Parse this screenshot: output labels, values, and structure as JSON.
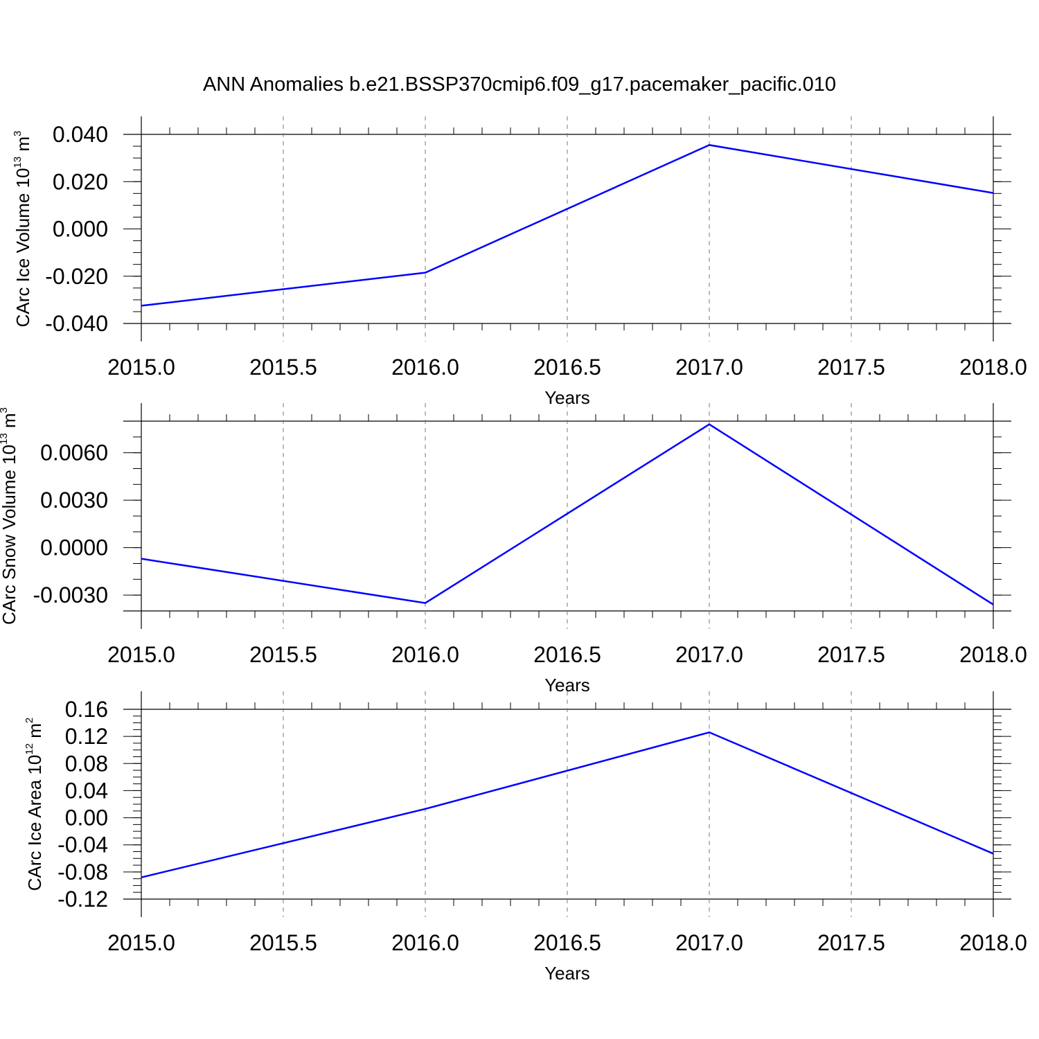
{
  "title": "ANN Anomalies b.e21.BSSP370cmip6.f09_g17.pacemaker_pacific.010",
  "colors": {
    "series": "#0000ff",
    "grid": "#777777",
    "axis": "#000000"
  },
  "chart_data": [
    {
      "type": "line",
      "xlabel": "Years",
      "ylabel": {
        "prefix": "CArc Ice Volume 10",
        "exp1": "13",
        "mid": " m",
        "exp2": "3"
      },
      "x": [
        2015,
        2016,
        2017,
        2018
      ],
      "values": [
        -0.0325,
        -0.0185,
        0.0355,
        0.0152
      ],
      "xlim": [
        2015,
        2018
      ],
      "ylim": [
        -0.04,
        0.04
      ],
      "x_ticks": [
        "2015.0",
        "2015.5",
        "2016.0",
        "2016.5",
        "2017.0",
        "2017.5",
        "2018.0"
      ],
      "y_ticks": [
        "-0.040",
        "-0.020",
        "0.000",
        "0.020",
        "0.040"
      ],
      "y_tick_values": [
        -0.04,
        -0.02,
        0.0,
        0.02,
        0.04
      ],
      "y_minor_step": 0.005,
      "grid": "x-dashed"
    },
    {
      "type": "line",
      "xlabel": "Years",
      "ylabel": {
        "prefix": "CArc Snow Volume 10",
        "exp1": "13",
        "mid": " m",
        "exp2": "3"
      },
      "x": [
        2015,
        2016,
        2017,
        2018
      ],
      "values": [
        -0.0007,
        -0.0035,
        0.0078,
        -0.0036
      ],
      "xlim": [
        2015,
        2018
      ],
      "ylim": [
        -0.004,
        0.008
      ],
      "x_ticks": [
        "2015.0",
        "2015.5",
        "2016.0",
        "2016.5",
        "2017.0",
        "2017.5",
        "2018.0"
      ],
      "y_ticks": [
        "-0.0030",
        "0.0000",
        "0.0030",
        "0.0060"
      ],
      "y_tick_values": [
        -0.003,
        0.0,
        0.003,
        0.006
      ],
      "y_minor_step": 0.001,
      "grid": "x-dashed"
    },
    {
      "type": "line",
      "xlabel": "Years",
      "ylabel": {
        "prefix": "CArc Ice Area 10",
        "exp1": "12",
        "mid": " m",
        "exp2": "2"
      },
      "x": [
        2015,
        2016,
        2017,
        2018
      ],
      "values": [
        -0.088,
        0.013,
        0.126,
        -0.053
      ],
      "xlim": [
        2015,
        2018
      ],
      "ylim": [
        -0.12,
        0.16
      ],
      "x_ticks": [
        "2015.0",
        "2015.5",
        "2016.0",
        "2016.5",
        "2017.0",
        "2017.5",
        "2018.0"
      ],
      "y_ticks": [
        "-0.12",
        "-0.08",
        "-0.04",
        "0.00",
        "0.04",
        "0.08",
        "0.12",
        "0.16"
      ],
      "y_tick_values": [
        -0.12,
        -0.08,
        -0.04,
        0.0,
        0.04,
        0.08,
        0.12,
        0.16
      ],
      "y_minor_step": 0.01,
      "grid": "x-dashed"
    }
  ]
}
